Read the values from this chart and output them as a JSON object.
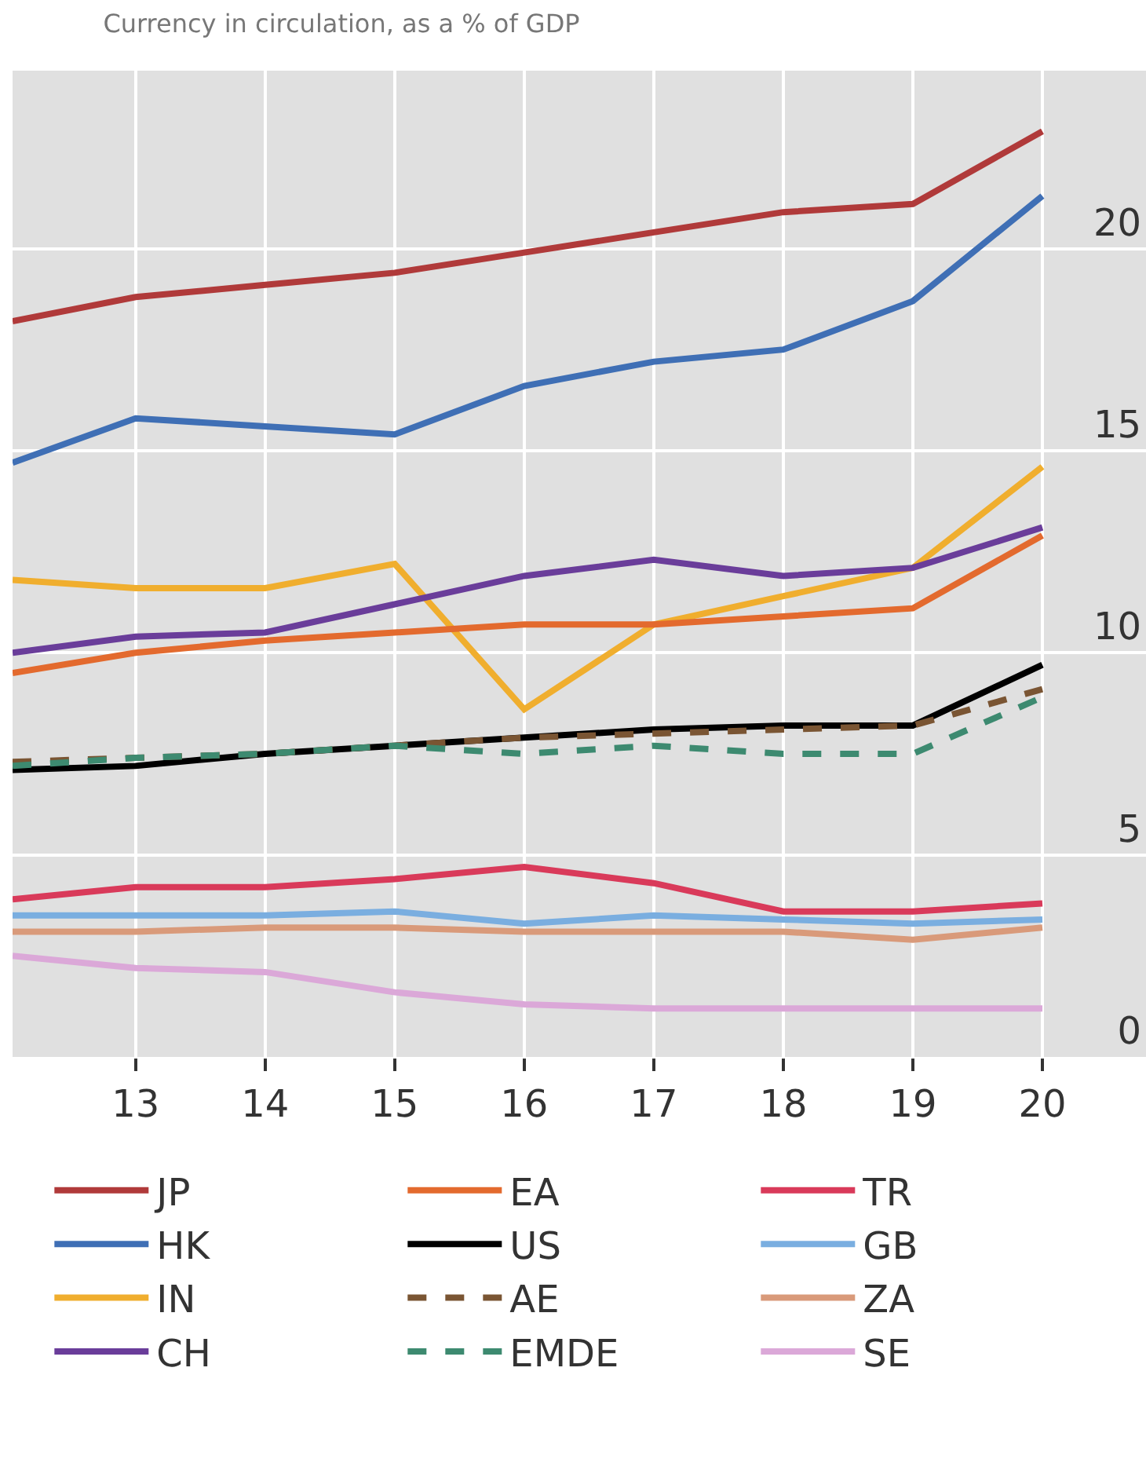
{
  "chart_data": {
    "type": "line",
    "title": "Currency in circulation, as a % of GDP",
    "x": [
      12.05,
      13,
      14,
      15,
      16,
      17,
      18,
      19,
      20
    ],
    "xlim": [
      12.05,
      20.8
    ],
    "xticks": [
      13,
      14,
      15,
      16,
      17,
      18,
      19,
      20
    ],
    "ylim": [
      0,
      24.4
    ],
    "yticks": [
      0,
      5,
      10,
      15,
      20
    ],
    "grid": true,
    "legend": "bottom",
    "line_style": "solid",
    "marker": "none",
    "series": [
      {
        "name": "JP",
        "color": "#b03a3a",
        "values": [
          18.2,
          18.8,
          19.1,
          19.4,
          19.9,
          20.4,
          20.9,
          21.1,
          22.9
        ]
      },
      {
        "name": "HK",
        "color": "#3f6fb5",
        "values": [
          14.7,
          15.8,
          15.6,
          15.4,
          16.6,
          17.2,
          17.5,
          18.7,
          21.3
        ]
      },
      {
        "name": "IN",
        "color": "#f0ae2e",
        "values": [
          11.8,
          11.6,
          11.6,
          12.2,
          8.6,
          10.7,
          11.4,
          12.1,
          14.6
        ]
      },
      {
        "name": "CH",
        "color": "#6a3d9a",
        "values": [
          10.0,
          10.4,
          10.5,
          11.2,
          11.9,
          12.3,
          11.9,
          12.1,
          13.1
        ]
      },
      {
        "name": "EA",
        "color": "#e36a2e",
        "values": [
          9.5,
          10.0,
          10.3,
          10.5,
          10.7,
          10.7,
          10.9,
          11.1,
          12.9
        ]
      },
      {
        "name": "US",
        "color": "#000000",
        "values": [
          7.1,
          7.2,
          7.5,
          7.7,
          7.9,
          8.1,
          8.2,
          8.2,
          9.7
        ]
      },
      {
        "name": "AE",
        "color": "#7a5533",
        "line_style": "dashed",
        "values": [
          7.3,
          7.4,
          7.5,
          7.7,
          7.9,
          8.0,
          8.1,
          8.2,
          9.1
        ]
      },
      {
        "name": "EMDE",
        "color": "#3d8a70",
        "line_style": "dashed",
        "values": [
          7.2,
          7.4,
          7.5,
          7.7,
          7.5,
          7.7,
          7.5,
          7.5,
          8.9
        ]
      },
      {
        "name": "TR",
        "color": "#d93a5a",
        "values": [
          3.9,
          4.2,
          4.2,
          4.4,
          4.7,
          4.3,
          3.6,
          3.6,
          3.8
        ]
      },
      {
        "name": "GB",
        "color": "#7aaee0",
        "values": [
          3.5,
          3.5,
          3.5,
          3.6,
          3.3,
          3.5,
          3.4,
          3.3,
          3.4
        ]
      },
      {
        "name": "ZA",
        "color": "#d99a7a",
        "values": [
          3.1,
          3.1,
          3.2,
          3.2,
          3.1,
          3.1,
          3.1,
          2.9,
          3.2
        ]
      },
      {
        "name": "SE",
        "color": "#dba8d8",
        "values": [
          2.5,
          2.2,
          2.1,
          1.6,
          1.3,
          1.2,
          1.2,
          1.2,
          1.2
        ]
      }
    ]
  }
}
